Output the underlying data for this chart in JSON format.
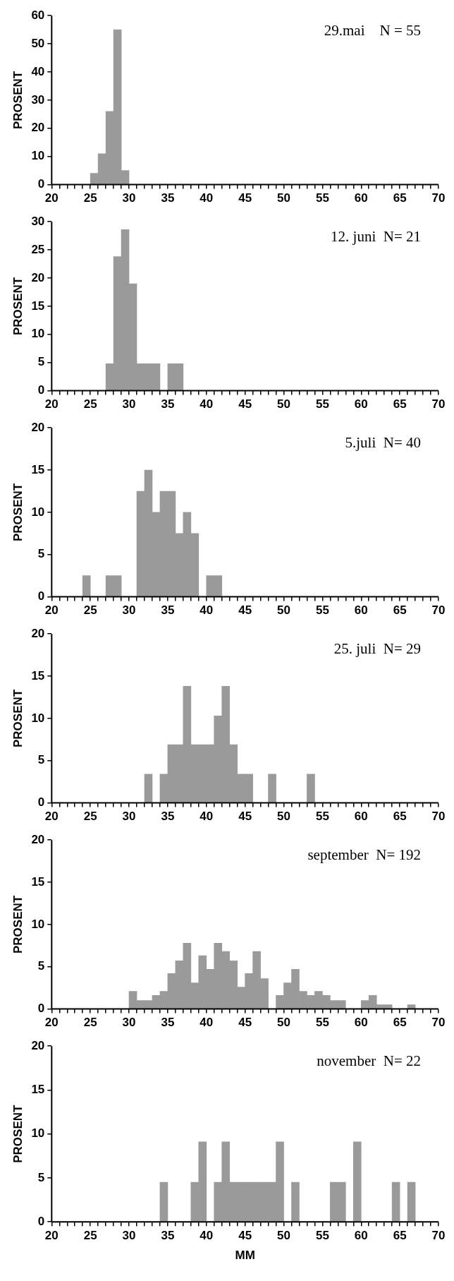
{
  "chart_data": [
    {
      "type": "histogram",
      "ylabel": "PROSENT",
      "annotations": [
        "29.mai    N = 55"
      ],
      "color": "#9a9a9a",
      "bins": [
        20,
        21,
        22,
        23,
        24,
        25,
        26,
        27,
        28,
        29,
        30,
        31,
        32,
        33,
        34,
        35,
        36,
        37,
        38,
        39,
        40,
        41,
        42,
        43,
        44,
        45,
        46,
        47,
        48,
        49,
        50,
        51,
        52,
        53,
        54,
        55,
        56,
        57,
        58,
        59,
        60,
        61,
        62,
        63,
        64,
        65,
        66,
        67,
        68,
        69,
        70
      ],
      "values": [
        0,
        0,
        0,
        0,
        0,
        4,
        11,
        26,
        55,
        5,
        0,
        0,
        0,
        0,
        0,
        0,
        0,
        0,
        0,
        0,
        0,
        0,
        0,
        0,
        0,
        0,
        0,
        0,
        0,
        0,
        0,
        0,
        0,
        0,
        0,
        0,
        0,
        0,
        0,
        0,
        0,
        0,
        0,
        0,
        0,
        0,
        0,
        0,
        0,
        0
      ],
      "xlim": [
        20,
        70
      ],
      "ylim": [
        0,
        60
      ],
      "yticks": [
        0,
        10,
        20,
        30,
        40,
        50,
        60
      ],
      "xticks": [
        20,
        {
          "value": 21,
          "label": null
        },
        {
          "value": 22,
          "label": null
        },
        {
          "value": 23,
          "label": null
        },
        {
          "value": 24,
          "label": null
        },
        25,
        {
          "value": 26,
          "label": null
        },
        {
          "value": 27,
          "label": null
        },
        {
          "value": 28,
          "label": null
        },
        {
          "value": 29,
          "label": null
        },
        30,
        {
          "value": 31,
          "label": null
        },
        {
          "value": 32,
          "label": null
        },
        {
          "value": 33,
          "label": null
        },
        {
          "value": 34,
          "label": null
        },
        35,
        {
          "value": 36,
          "label": null
        },
        {
          "value": 37,
          "label": null
        },
        {
          "value": 38,
          "label": null
        },
        {
          "value": 39,
          "label": null
        },
        40,
        {
          "value": 41,
          "label": null
        },
        {
          "value": 42,
          "label": null
        },
        {
          "value": 43,
          "label": null
        },
        {
          "value": 44,
          "label": null
        },
        45,
        {
          "value": 46,
          "label": null
        },
        {
          "value": 47,
          "label": null
        },
        {
          "value": 48,
          "label": null
        },
        {
          "value": 49,
          "label": null
        },
        50,
        {
          "value": 51,
          "label": null
        },
        {
          "value": 52,
          "label": null
        },
        {
          "value": 53,
          "label": null
        },
        {
          "value": 54,
          "label": null
        },
        55,
        {
          "value": 56,
          "label": null
        },
        {
          "value": 57,
          "label": null
        },
        {
          "value": 58,
          "label": null
        },
        {
          "value": 59,
          "label": null
        },
        60,
        {
          "value": 61,
          "label": null
        },
        {
          "value": 62,
          "label": null
        },
        {
          "value": 63,
          "label": null
        },
        {
          "value": 64,
          "label": null
        },
        65,
        {
          "value": 66,
          "label": null
        },
        {
          "value": 67,
          "label": null
        },
        {
          "value": 68,
          "label": null
        },
        {
          "value": 69,
          "label": null
        },
        70
      ]
    },
    {
      "type": "histogram",
      "ylabel": "PROSENT",
      "annotations": [
        "12. juni  N= 21"
      ],
      "color": "#9a9a9a",
      "bins": [
        20,
        21,
        22,
        23,
        24,
        25,
        26,
        27,
        28,
        29,
        30,
        31,
        32,
        33,
        34,
        35,
        36,
        37,
        38,
        39,
        40,
        41,
        42,
        43,
        44,
        45,
        46,
        47,
        48,
        49,
        50,
        51,
        52,
        53,
        54,
        55,
        56,
        57,
        58,
        59,
        60,
        61,
        62,
        63,
        64,
        65,
        66,
        67,
        68,
        69,
        70
      ],
      "values": [
        0,
        0,
        0,
        0,
        0,
        0,
        0,
        4.8,
        23.8,
        28.6,
        19,
        4.8,
        4.8,
        4.8,
        0,
        4.8,
        4.8,
        0,
        0,
        0,
        0,
        0,
        0,
        0,
        0,
        0,
        0,
        0,
        0,
        0,
        0,
        0,
        0,
        0,
        0,
        0,
        0,
        0,
        0,
        0,
        0,
        0,
        0,
        0,
        0,
        0,
        0,
        0,
        0,
        0
      ],
      "xlim": [
        20,
        70
      ],
      "ylim": [
        0,
        30
      ],
      "yticks": [
        0,
        5,
        10,
        15,
        20,
        25,
        30
      ],
      "xticks": [
        20,
        {
          "value": 21,
          "label": null
        },
        {
          "value": 22,
          "label": null
        },
        {
          "value": 23,
          "label": null
        },
        {
          "value": 24,
          "label": null
        },
        25,
        {
          "value": 26,
          "label": null
        },
        {
          "value": 27,
          "label": null
        },
        {
          "value": 28,
          "label": null
        },
        {
          "value": 29,
          "label": null
        },
        30,
        {
          "value": 31,
          "label": null
        },
        {
          "value": 32,
          "label": null
        },
        {
          "value": 33,
          "label": null
        },
        {
          "value": 34,
          "label": null
        },
        35,
        {
          "value": 36,
          "label": null
        },
        {
          "value": 37,
          "label": null
        },
        {
          "value": 38,
          "label": null
        },
        {
          "value": 39,
          "label": null
        },
        40,
        {
          "value": 41,
          "label": null
        },
        {
          "value": 42,
          "label": null
        },
        {
          "value": 43,
          "label": null
        },
        {
          "value": 44,
          "label": null
        },
        45,
        {
          "value": 46,
          "label": null
        },
        {
          "value": 47,
          "label": null
        },
        {
          "value": 48,
          "label": null
        },
        {
          "value": 49,
          "label": null
        },
        50,
        {
          "value": 51,
          "label": null
        },
        {
          "value": 52,
          "label": null
        },
        {
          "value": 53,
          "label": null
        },
        {
          "value": 54,
          "label": null
        },
        55,
        {
          "value": 56,
          "label": null
        },
        {
          "value": 57,
          "label": null
        },
        {
          "value": 58,
          "label": null
        },
        {
          "value": 59,
          "label": null
        },
        60,
        {
          "value": 61,
          "label": null
        },
        {
          "value": 62,
          "label": null
        },
        {
          "value": 63,
          "label": null
        },
        {
          "value": 64,
          "label": null
        },
        65,
        {
          "value": 66,
          "label": null
        },
        {
          "value": 67,
          "label": null
        },
        {
          "value": 68,
          "label": null
        },
        {
          "value": 69,
          "label": null
        },
        70
      ]
    },
    {
      "type": "histogram",
      "ylabel": "PROSENT",
      "annotations": [
        "5.juli  N= 40"
      ],
      "color": "#9a9a9a",
      "bins": [
        20,
        21,
        22,
        23,
        24,
        25,
        26,
        27,
        28,
        29,
        30,
        31,
        32,
        33,
        34,
        35,
        36,
        37,
        38,
        39,
        40,
        41,
        42,
        43,
        44,
        45,
        46,
        47,
        48,
        49,
        50,
        51,
        52,
        53,
        54,
        55,
        56,
        57,
        58,
        59,
        60,
        61,
        62,
        63,
        64,
        65,
        66,
        67,
        68,
        69,
        70
      ],
      "values": [
        0,
        0,
        0,
        0,
        2.5,
        0,
        0,
        2.5,
        2.5,
        0,
        0,
        12.5,
        15,
        10,
        12.5,
        12.5,
        7.5,
        10,
        7.5,
        0,
        2.5,
        2.5,
        0,
        0,
        0,
        0,
        0,
        0,
        0,
        0,
        0,
        0,
        0,
        0,
        0,
        0,
        0,
        0,
        0,
        0,
        0,
        0,
        0,
        0,
        0,
        0,
        0,
        0,
        0,
        0
      ],
      "xlim": [
        20,
        70
      ],
      "ylim": [
        0,
        20
      ],
      "yticks": [
        0,
        5,
        10,
        15,
        20
      ],
      "xticks": [
        20,
        {
          "value": 21,
          "label": null
        },
        {
          "value": 22,
          "label": null
        },
        {
          "value": 23,
          "label": null
        },
        {
          "value": 24,
          "label": null
        },
        25,
        {
          "value": 26,
          "label": null
        },
        {
          "value": 27,
          "label": null
        },
        {
          "value": 28,
          "label": null
        },
        {
          "value": 29,
          "label": null
        },
        30,
        {
          "value": 31,
          "label": null
        },
        {
          "value": 32,
          "label": null
        },
        {
          "value": 33,
          "label": null
        },
        {
          "value": 34,
          "label": null
        },
        35,
        {
          "value": 36,
          "label": null
        },
        {
          "value": 37,
          "label": null
        },
        {
          "value": 38,
          "label": null
        },
        {
          "value": 39,
          "label": null
        },
        40,
        {
          "value": 41,
          "label": null
        },
        {
          "value": 42,
          "label": null
        },
        {
          "value": 43,
          "label": null
        },
        {
          "value": 44,
          "label": null
        },
        45,
        {
          "value": 46,
          "label": null
        },
        {
          "value": 47,
          "label": null
        },
        {
          "value": 48,
          "label": null
        },
        {
          "value": 49,
          "label": null
        },
        50,
        {
          "value": 51,
          "label": null
        },
        {
          "value": 52,
          "label": null
        },
        {
          "value": 53,
          "label": null
        },
        {
          "value": 54,
          "label": null
        },
        55,
        {
          "value": 56,
          "label": null
        },
        {
          "value": 57,
          "label": null
        },
        {
          "value": 58,
          "label": null
        },
        {
          "value": 59,
          "label": null
        },
        60,
        {
          "value": 61,
          "label": null
        },
        {
          "value": 62,
          "label": null
        },
        {
          "value": 63,
          "label": null
        },
        {
          "value": 64,
          "label": null
        },
        65,
        {
          "value": 66,
          "label": null
        },
        {
          "value": 67,
          "label": null
        },
        {
          "value": 68,
          "label": null
        },
        {
          "value": 69,
          "label": null
        },
        70
      ]
    },
    {
      "type": "histogram",
      "ylabel": "PROSENT",
      "annotations": [
        "25. juli  N= 29"
      ],
      "color": "#9a9a9a",
      "bins": [
        20,
        21,
        22,
        23,
        24,
        25,
        26,
        27,
        28,
        29,
        30,
        31,
        32,
        33,
        34,
        35,
        36,
        37,
        38,
        39,
        40,
        41,
        42,
        43,
        44,
        45,
        46,
        47,
        48,
        49,
        50,
        51,
        52,
        53,
        54,
        55,
        56,
        57,
        58,
        59,
        60,
        61,
        62,
        63,
        64,
        65,
        66,
        67,
        68,
        69,
        70
      ],
      "values": [
        0,
        0,
        0,
        0,
        0,
        0,
        0,
        0,
        0,
        0,
        0,
        0,
        3.4,
        0,
        3.4,
        6.9,
        6.9,
        13.8,
        6.9,
        6.9,
        6.9,
        10.3,
        13.8,
        6.9,
        3.4,
        3.4,
        0,
        0,
        3.4,
        0,
        0,
        0,
        0,
        3.4,
        0,
        0,
        0,
        0,
        0,
        0,
        0,
        0,
        0,
        0,
        0,
        0,
        0,
        0,
        0,
        0
      ],
      "xlim": [
        20,
        70
      ],
      "ylim": [
        0,
        20
      ],
      "yticks": [
        0,
        5,
        10,
        15,
        20
      ],
      "xticks": [
        20,
        {
          "value": 21,
          "label": null
        },
        {
          "value": 22,
          "label": null
        },
        {
          "value": 23,
          "label": null
        },
        {
          "value": 24,
          "label": null
        },
        25,
        {
          "value": 26,
          "label": null
        },
        {
          "value": 27,
          "label": null
        },
        {
          "value": 28,
          "label": null
        },
        {
          "value": 29,
          "label": null
        },
        30,
        {
          "value": 31,
          "label": null
        },
        {
          "value": 32,
          "label": null
        },
        {
          "value": 33,
          "label": null
        },
        {
          "value": 34,
          "label": null
        },
        35,
        {
          "value": 36,
          "label": null
        },
        {
          "value": 37,
          "label": null
        },
        {
          "value": 38,
          "label": null
        },
        {
          "value": 39,
          "label": null
        },
        40,
        {
          "value": 41,
          "label": null
        },
        {
          "value": 42,
          "label": null
        },
        {
          "value": 43,
          "label": null
        },
        {
          "value": 44,
          "label": null
        },
        45,
        {
          "value": 46,
          "label": null
        },
        {
          "value": 47,
          "label": null
        },
        {
          "value": 48,
          "label": null
        },
        {
          "value": 49,
          "label": null
        },
        50,
        {
          "value": 51,
          "label": null
        },
        {
          "value": 52,
          "label": null
        },
        {
          "value": 53,
          "label": null
        },
        {
          "value": 54,
          "label": null
        },
        55,
        {
          "value": 56,
          "label": null
        },
        {
          "value": 57,
          "label": null
        },
        {
          "value": 58,
          "label": null
        },
        {
          "value": 59,
          "label": null
        },
        60,
        {
          "value": 61,
          "label": null
        },
        {
          "value": 62,
          "label": null
        },
        {
          "value": 63,
          "label": null
        },
        {
          "value": 64,
          "label": null
        },
        65,
        {
          "value": 66,
          "label": null
        },
        {
          "value": 67,
          "label": null
        },
        {
          "value": 68,
          "label": null
        },
        {
          "value": 69,
          "label": null
        },
        70
      ]
    },
    {
      "type": "histogram",
      "ylabel": "PROSENT",
      "annotations": [
        "september  N= 192"
      ],
      "color": "#9a9a9a",
      "bins": [
        20,
        21,
        22,
        23,
        24,
        25,
        26,
        27,
        28,
        29,
        30,
        31,
        32,
        33,
        34,
        35,
        36,
        37,
        38,
        39,
        40,
        41,
        42,
        43,
        44,
        45,
        46,
        47,
        48,
        49,
        50,
        51,
        52,
        53,
        54,
        55,
        56,
        57,
        58,
        59,
        60,
        61,
        62,
        63,
        64,
        65,
        66,
        67,
        68,
        69,
        70
      ],
      "values": [
        0,
        0,
        0,
        0,
        0,
        0,
        0,
        0,
        0,
        0,
        2.1,
        1.0,
        1.0,
        1.6,
        2.1,
        4.2,
        5.7,
        7.8,
        3.1,
        6.3,
        4.7,
        7.8,
        6.8,
        5.7,
        2.6,
        4.2,
        6.8,
        3.6,
        0,
        1.6,
        3.1,
        4.7,
        2.1,
        1.6,
        2.1,
        1.6,
        1.0,
        1.0,
        0,
        0,
        1.0,
        1.6,
        0.5,
        0.5,
        0,
        0,
        0.5,
        0,
        0,
        0
      ],
      "xlim": [
        20,
        70
      ],
      "ylim": [
        0,
        20
      ],
      "yticks": [
        0,
        5,
        10,
        15,
        20
      ],
      "xticks": [
        20,
        {
          "value": 21,
          "label": null
        },
        {
          "value": 22,
          "label": null
        },
        {
          "value": 23,
          "label": null
        },
        {
          "value": 24,
          "label": null
        },
        25,
        {
          "value": 26,
          "label": null
        },
        {
          "value": 27,
          "label": null
        },
        {
          "value": 28,
          "label": null
        },
        {
          "value": 29,
          "label": null
        },
        30,
        {
          "value": 31,
          "label": null
        },
        {
          "value": 32,
          "label": null
        },
        {
          "value": 33,
          "label": null
        },
        {
          "value": 34,
          "label": null
        },
        35,
        {
          "value": 36,
          "label": null
        },
        {
          "value": 37,
          "label": null
        },
        {
          "value": 38,
          "label": null
        },
        {
          "value": 39,
          "label": null
        },
        40,
        {
          "value": 41,
          "label": null
        },
        {
          "value": 42,
          "label": null
        },
        {
          "value": 43,
          "label": null
        },
        {
          "value": 44,
          "label": null
        },
        45,
        {
          "value": 46,
          "label": null
        },
        {
          "value": 47,
          "label": null
        },
        {
          "value": 48,
          "label": null
        },
        {
          "value": 49,
          "label": null
        },
        50,
        {
          "value": 51,
          "label": null
        },
        {
          "value": 52,
          "label": null
        },
        {
          "value": 53,
          "label": null
        },
        {
          "value": 54,
          "label": null
        },
        55,
        {
          "value": 56,
          "label": null
        },
        {
          "value": 57,
          "label": null
        },
        {
          "value": 58,
          "label": null
        },
        {
          "value": 59,
          "label": null
        },
        60,
        {
          "value": 61,
          "label": null
        },
        {
          "value": 62,
          "label": null
        },
        {
          "value": 63,
          "label": null
        },
        {
          "value": 64,
          "label": null
        },
        65,
        {
          "value": 66,
          "label": null
        },
        {
          "value": 67,
          "label": null
        },
        {
          "value": 68,
          "label": null
        },
        {
          "value": 69,
          "label": null
        },
        70
      ]
    },
    {
      "type": "histogram",
      "ylabel": "PROSENT",
      "xlabel": "MM",
      "annotations": [
        "november  N= 22"
      ],
      "color": "#9a9a9a",
      "bins": [
        20,
        21,
        22,
        23,
        24,
        25,
        26,
        27,
        28,
        29,
        30,
        31,
        32,
        33,
        34,
        35,
        36,
        37,
        38,
        39,
        40,
        41,
        42,
        43,
        44,
        45,
        46,
        47,
        48,
        49,
        50,
        51,
        52,
        53,
        54,
        55,
        56,
        57,
        58,
        59,
        60,
        61,
        62,
        63,
        64,
        65,
        66,
        67,
        68,
        69,
        70
      ],
      "values": [
        0,
        0,
        0,
        0,
        0,
        0,
        0,
        0,
        0,
        0,
        0,
        0,
        0,
        0,
        4.5,
        0,
        0,
        0,
        4.5,
        9.1,
        0,
        4.5,
        9.1,
        4.5,
        4.5,
        4.5,
        4.5,
        4.5,
        4.5,
        9.1,
        0,
        4.5,
        0,
        0,
        0,
        0,
        4.5,
        4.5,
        0,
        9.1,
        0,
        0,
        0,
        0,
        4.5,
        0,
        4.5,
        0,
        0,
        0
      ],
      "xlim": [
        20,
        70
      ],
      "ylim": [
        0,
        20
      ],
      "yticks": [
        0,
        5,
        10,
        15,
        20
      ],
      "xticks": [
        20,
        {
          "value": 21,
          "label": null
        },
        {
          "value": 22,
          "label": null
        },
        {
          "value": 23,
          "label": null
        },
        {
          "value": 24,
          "label": null
        },
        25,
        {
          "value": 26,
          "label": null
        },
        {
          "value": 27,
          "label": null
        },
        {
          "value": 28,
          "label": null
        },
        {
          "value": 29,
          "label": null
        },
        30,
        {
          "value": 31,
          "label": null
        },
        {
          "value": 32,
          "label": null
        },
        {
          "value": 33,
          "label": null
        },
        {
          "value": 34,
          "label": null
        },
        35,
        {
          "value": 36,
          "label": null
        },
        {
          "value": 37,
          "label": null
        },
        {
          "value": 38,
          "label": null
        },
        {
          "value": 39,
          "label": null
        },
        40,
        {
          "value": 41,
          "label": null
        },
        {
          "value": 42,
          "label": null
        },
        {
          "value": 43,
          "label": null
        },
        {
          "value": 44,
          "label": null
        },
        45,
        {
          "value": 46,
          "label": null
        },
        {
          "value": 47,
          "label": null
        },
        {
          "value": 48,
          "label": null
        },
        {
          "value": 49,
          "label": null
        },
        50,
        {
          "value": 51,
          "label": null
        },
        {
          "value": 52,
          "label": null
        },
        {
          "value": 53,
          "label": null
        },
        {
          "value": 54,
          "label": null
        },
        55,
        {
          "value": 56,
          "label": null
        },
        {
          "value": 57,
          "label": null
        },
        {
          "value": 58,
          "label": null
        },
        {
          "value": 59,
          "label": null
        },
        60,
        {
          "value": 61,
          "label": null
        },
        {
          "value": 62,
          "label": null
        },
        {
          "value": 63,
          "label": null
        },
        {
          "value": 64,
          "label": null
        },
        65,
        {
          "value": 66,
          "label": null
        },
        {
          "value": 67,
          "label": null
        },
        {
          "value": 68,
          "label": null
        },
        {
          "value": 69,
          "label": null
        },
        70
      ]
    }
  ]
}
